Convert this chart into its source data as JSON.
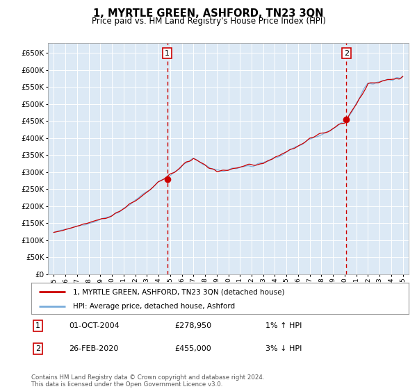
{
  "title": "1, MYRTLE GREEN, ASHFORD, TN23 3QN",
  "subtitle": "Price paid vs. HM Land Registry's House Price Index (HPI)",
  "legend_line1": "1, MYRTLE GREEN, ASHFORD, TN23 3QN (detached house)",
  "legend_line2": "HPI: Average price, detached house, Ashford",
  "footnote": "Contains HM Land Registry data © Crown copyright and database right 2024.\nThis data is licensed under the Open Government Licence v3.0.",
  "sale1_label": "1",
  "sale1_date": "01-OCT-2004",
  "sale1_price": "£278,950",
  "sale1_hpi": "1% ↑ HPI",
  "sale2_label": "2",
  "sale2_date": "26-FEB-2020",
  "sale2_price": "£455,000",
  "sale2_hpi": "3% ↓ HPI",
  "sale1_x": 2004.75,
  "sale1_y": 278950,
  "sale2_x": 2020.15,
  "sale2_y": 455000,
  "ylim_min": 0,
  "ylim_max": 680000,
  "xlim_min": 1994.5,
  "xlim_max": 2025.5,
  "yticks": [
    0,
    50000,
    100000,
    150000,
    200000,
    250000,
    300000,
    350000,
    400000,
    450000,
    500000,
    550000,
    600000,
    650000
  ],
  "bg_color": "#dce9f5",
  "grid_color": "#ffffff",
  "line_color_red": "#cc0000",
  "line_color_blue": "#7aaddb",
  "sale_marker_color": "#cc0000",
  "vline_color": "#cc0000",
  "box_color": "#cc0000"
}
